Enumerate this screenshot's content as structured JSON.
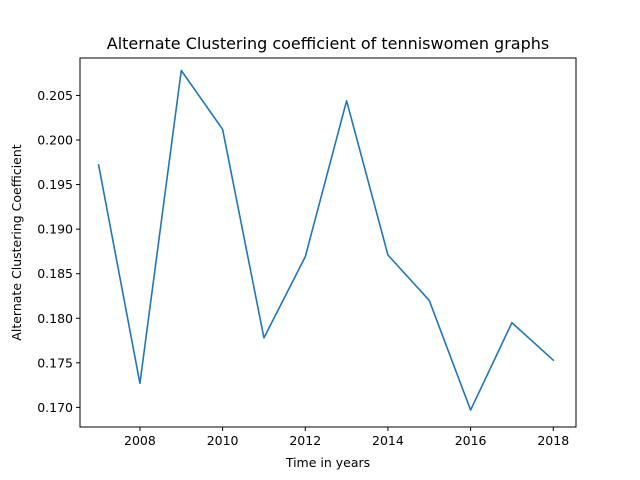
{
  "chart_data": {
    "type": "line",
    "title": "Alternate Clustering coefficient of tenniswomen graphs",
    "xlabel": "Time in years",
    "ylabel": "Alternate Clustering Coefficient",
    "x": [
      2007,
      2008,
      2009,
      2010,
      2011,
      2012,
      2013,
      2014,
      2015,
      2016,
      2017,
      2018
    ],
    "series": [
      {
        "values": [
          0.1972,
          0.1727,
          0.2078,
          0.2012,
          0.1778,
          0.1869,
          0.2044,
          0.1871,
          0.182,
          0.1697,
          0.1795,
          0.1753
        ]
      }
    ],
    "xlim": [
      2006.55,
      2018.55
    ],
    "ylim": [
      0.1678,
      0.2092
    ],
    "xticks": [
      2008,
      2010,
      2012,
      2014,
      2016,
      2018
    ],
    "yticks": [
      0.17,
      0.175,
      0.18,
      0.185,
      0.19,
      0.195,
      0.2,
      0.205
    ],
    "ytick_labels": [
      "0.170",
      "0.175",
      "0.180",
      "0.185",
      "0.190",
      "0.195",
      "0.200",
      "0.205"
    ],
    "grid": false,
    "line_color": "#1f77b4"
  }
}
